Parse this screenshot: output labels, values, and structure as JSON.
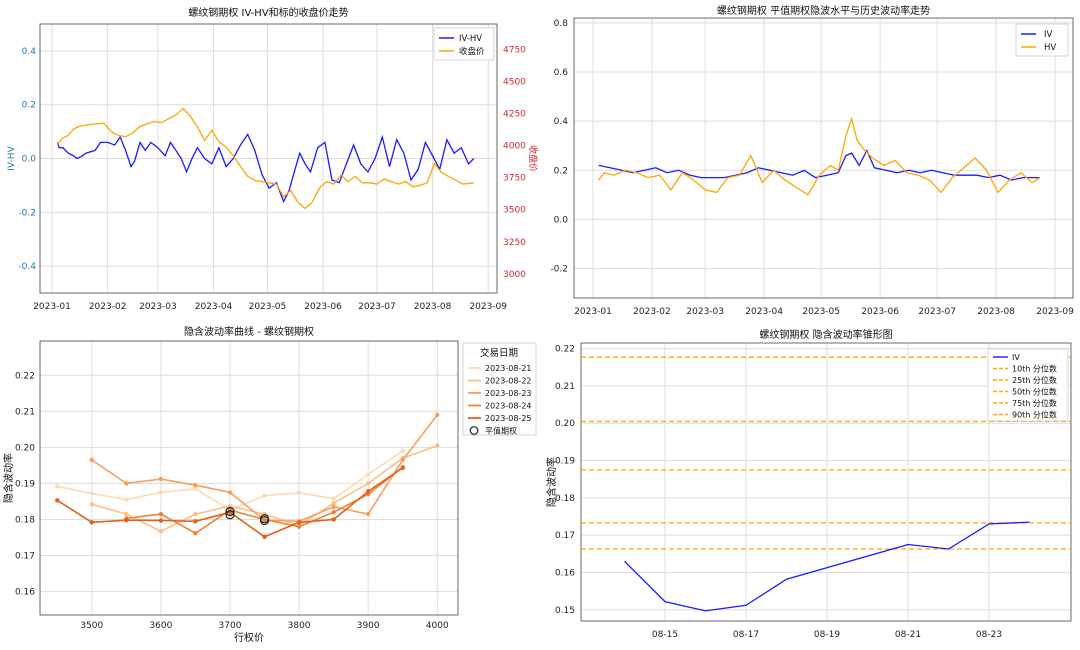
{
  "chart_data": [
    {
      "type": "line",
      "title": "螺纹钢期权 IV-HV和标的收盘价走势",
      "ylabel": "IV-HV",
      "y2label": "收盘价",
      "x_ticks": [
        "2023-01",
        "2023-02",
        "2023-03",
        "2023-04",
        "2023-05",
        "2023-06",
        "2023-07",
        "2023-08",
        "2023-09"
      ],
      "y_ticks": [
        "-0.4",
        "-0.2",
        "0.0",
        "0.2",
        "0.4"
      ],
      "y2_ticks": [
        "3000",
        "3250",
        "3500",
        "3750",
        "4000",
        "4250",
        "4500",
        "4750"
      ],
      "ylim": [
        -0.5,
        0.5
      ],
      "y2lim": [
        2850,
        4950
      ],
      "x_start": "2023-01-01",
      "x_end": "2023-09-01",
      "legend_position": "top-right",
      "grid": true,
      "colors": {
        "left_axis": "#1f77b4",
        "right_axis": "#d62728"
      },
      "series": [
        {
          "name": "IV-HV",
          "axis": "left",
          "color": "#1a1aff",
          "x": [
            "2023-01-04",
            "2023-01-05",
            "2023-01-07",
            "2023-01-10",
            "2023-01-13",
            "2023-01-15",
            "2023-01-18",
            "2023-01-20",
            "2023-01-25",
            "2023-01-28",
            "2023-02-01",
            "2023-02-05",
            "2023-02-08",
            "2023-02-11",
            "2023-02-14",
            "2023-02-16",
            "2023-02-19",
            "2023-02-22",
            "2023-02-25",
            "2023-03-01",
            "2023-03-05",
            "2023-03-08",
            "2023-03-11",
            "2023-03-14",
            "2023-03-17",
            "2023-03-20",
            "2023-03-23",
            "2023-03-27",
            "2023-03-31",
            "2023-04-04",
            "2023-04-08",
            "2023-04-12",
            "2023-04-16",
            "2023-04-20",
            "2023-04-24",
            "2023-04-28",
            "2023-05-02",
            "2023-05-06",
            "2023-05-10",
            "2023-05-13",
            "2023-05-16",
            "2023-05-19",
            "2023-05-22",
            "2023-05-25",
            "2023-05-29",
            "2023-06-02",
            "2023-06-06",
            "2023-06-10",
            "2023-06-14",
            "2023-06-18",
            "2023-06-22",
            "2023-06-26",
            "2023-06-30",
            "2023-07-04",
            "2023-07-08",
            "2023-07-12",
            "2023-07-16",
            "2023-07-20",
            "2023-07-24",
            "2023-07-28",
            "2023-08-01",
            "2023-08-05",
            "2023-08-09",
            "2023-08-13",
            "2023-08-17",
            "2023-08-21",
            "2023-08-24"
          ],
          "values": [
            0.06,
            0.04,
            0.04,
            0.02,
            0.01,
            0.0,
            0.01,
            0.02,
            0.03,
            0.06,
            0.06,
            0.05,
            0.08,
            0.03,
            -0.03,
            -0.01,
            0.06,
            0.03,
            0.06,
            0.04,
            0.01,
            0.06,
            0.03,
            0.0,
            -0.05,
            0.0,
            0.04,
            0.0,
            -0.02,
            0.04,
            -0.03,
            0.0,
            0.05,
            0.09,
            0.03,
            -0.06,
            -0.11,
            -0.09,
            -0.16,
            -0.12,
            -0.05,
            0.02,
            -0.02,
            -0.05,
            0.04,
            0.06,
            -0.08,
            -0.09,
            -0.02,
            0.05,
            -0.02,
            -0.05,
            0.0,
            0.08,
            -0.03,
            0.07,
            0.02,
            -0.08,
            -0.04,
            0.06,
            0.01,
            -0.04,
            0.07,
            0.02,
            0.04,
            -0.02,
            0.0
          ]
        },
        {
          "name": "收盘价",
          "axis": "right",
          "color": "#ffa500",
          "x": [
            "2023-01-04",
            "2023-01-07",
            "2023-01-10",
            "2023-01-13",
            "2023-01-16",
            "2023-01-20",
            "2023-01-25",
            "2023-01-30",
            "2023-02-03",
            "2023-02-07",
            "2023-02-11",
            "2023-02-15",
            "2023-02-19",
            "2023-02-23",
            "2023-02-27",
            "2023-03-03",
            "2023-03-07",
            "2023-03-11",
            "2023-03-15",
            "2023-03-19",
            "2023-03-23",
            "2023-03-27",
            "2023-03-31",
            "2023-04-04",
            "2023-04-08",
            "2023-04-12",
            "2023-04-16",
            "2023-04-20",
            "2023-04-24",
            "2023-04-28",
            "2023-05-02",
            "2023-05-06",
            "2023-05-10",
            "2023-05-14",
            "2023-05-18",
            "2023-05-22",
            "2023-05-26",
            "2023-05-30",
            "2023-06-03",
            "2023-06-07",
            "2023-06-11",
            "2023-06-15",
            "2023-06-19",
            "2023-06-23",
            "2023-06-27",
            "2023-07-01",
            "2023-07-05",
            "2023-07-09",
            "2023-07-13",
            "2023-07-17",
            "2023-07-21",
            "2023-07-25",
            "2023-07-29",
            "2023-08-02",
            "2023-08-06",
            "2023-08-10",
            "2023-08-14",
            "2023-08-18",
            "2023-08-24"
          ],
          "values": [
            4010,
            4060,
            4080,
            4130,
            4150,
            4160,
            4170,
            4175,
            4110,
            4080,
            4070,
            4100,
            4150,
            4170,
            4190,
            4180,
            4210,
            4240,
            4290,
            4230,
            4150,
            4040,
            4120,
            4030,
            3990,
            3920,
            3840,
            3760,
            3730,
            3720,
            3710,
            3700,
            3600,
            3650,
            3560,
            3510,
            3560,
            3670,
            3720,
            3700,
            3770,
            3720,
            3760,
            3710,
            3710,
            3700,
            3740,
            3720,
            3700,
            3720,
            3680,
            3690,
            3710,
            3860,
            3790,
            3760,
            3730,
            3700,
            3710
          ]
        }
      ]
    },
    {
      "type": "line",
      "title": "螺纹钢期权 平值期权隐波水平与历史波动率走势",
      "x_ticks": [
        "2023-01",
        "2023-02",
        "2023-03",
        "2023-04",
        "2023-05",
        "2023-06",
        "2023-07",
        "2023-08",
        "2023-09"
      ],
      "y_ticks": [
        "-0.2",
        "0.0",
        "0.2",
        "0.4",
        "0.6",
        "0.8"
      ],
      "ylim": [
        -0.32,
        0.82
      ],
      "x_start": "2023-01-01",
      "x_end": "2023-09-01",
      "legend_position": "top-right",
      "grid": true,
      "series": [
        {
          "name": "IV",
          "color": "#1a1aff",
          "x": [
            "2023-01-04",
            "2023-01-10",
            "2023-01-16",
            "2023-01-22",
            "2023-01-28",
            "2023-02-03",
            "2023-02-09",
            "2023-02-15",
            "2023-02-21",
            "2023-02-27",
            "2023-03-05",
            "2023-03-11",
            "2023-03-17",
            "2023-03-23",
            "2023-03-29",
            "2023-04-04",
            "2023-04-10",
            "2023-04-16",
            "2023-04-22",
            "2023-04-28",
            "2023-05-04",
            "2023-05-10",
            "2023-05-14",
            "2023-05-17",
            "2023-05-21",
            "2023-05-25",
            "2023-05-29",
            "2023-06-04",
            "2023-06-10",
            "2023-06-16",
            "2023-06-22",
            "2023-06-28",
            "2023-07-04",
            "2023-07-10",
            "2023-07-16",
            "2023-07-22",
            "2023-07-28",
            "2023-08-03",
            "2023-08-09",
            "2023-08-15",
            "2023-08-19",
            "2023-08-24"
          ],
          "values": [
            0.22,
            0.21,
            0.2,
            0.19,
            0.2,
            0.21,
            0.19,
            0.2,
            0.18,
            0.17,
            0.17,
            0.17,
            0.18,
            0.19,
            0.21,
            0.2,
            0.19,
            0.18,
            0.2,
            0.17,
            0.18,
            0.19,
            0.26,
            0.27,
            0.22,
            0.28,
            0.21,
            0.2,
            0.19,
            0.2,
            0.19,
            0.2,
            0.19,
            0.18,
            0.18,
            0.18,
            0.17,
            0.18,
            0.16,
            0.17,
            0.17,
            0.17
          ]
        },
        {
          "name": "HV",
          "color": "#ffa500",
          "x": [
            "2023-01-04",
            "2023-01-07",
            "2023-01-12",
            "2023-01-18",
            "2023-01-24",
            "2023-01-30",
            "2023-02-05",
            "2023-02-11",
            "2023-02-17",
            "2023-02-23",
            "2023-03-01",
            "2023-03-07",
            "2023-03-13",
            "2023-03-19",
            "2023-03-25",
            "2023-03-31",
            "2023-04-06",
            "2023-04-12",
            "2023-04-18",
            "2023-04-24",
            "2023-04-30",
            "2023-05-06",
            "2023-05-10",
            "2023-05-14",
            "2023-05-17",
            "2023-05-20",
            "2023-05-24",
            "2023-05-28",
            "2023-06-03",
            "2023-06-09",
            "2023-06-15",
            "2023-06-21",
            "2023-06-27",
            "2023-07-03",
            "2023-07-09",
            "2023-07-15",
            "2023-07-21",
            "2023-07-27",
            "2023-08-02",
            "2023-08-08",
            "2023-08-14",
            "2023-08-20",
            "2023-08-24"
          ],
          "values": [
            0.16,
            0.19,
            0.18,
            0.2,
            0.19,
            0.17,
            0.18,
            0.12,
            0.19,
            0.16,
            0.12,
            0.11,
            0.17,
            0.18,
            0.26,
            0.15,
            0.2,
            0.16,
            0.13,
            0.1,
            0.18,
            0.22,
            0.2,
            0.34,
            0.41,
            0.32,
            0.28,
            0.25,
            0.22,
            0.24,
            0.19,
            0.18,
            0.16,
            0.11,
            0.17,
            0.21,
            0.25,
            0.2,
            0.11,
            0.16,
            0.19,
            0.15,
            0.17
          ]
        }
      ]
    },
    {
      "type": "line",
      "title": "隐含波动率曲线 - 螺纹钢期权",
      "xlabel": "行权价",
      "ylabel": "隐含波动率",
      "x_ticks": [
        "3500",
        "3600",
        "3700",
        "3800",
        "3900",
        "4000"
      ],
      "y_ticks": [
        "0.16",
        "0.17",
        "0.18",
        "0.19",
        "0.20",
        "0.21",
        "0.22"
      ],
      "xlim": [
        3425,
        4030
      ],
      "ylim": [
        0.1535,
        0.2295
      ],
      "legend_title": "交易日期",
      "legend_position": "top-right, outside",
      "grid": true,
      "x": [
        3450,
        3500,
        3550,
        3600,
        3650,
        3700,
        3750,
        3800,
        3850,
        3900,
        3950,
        4000
      ],
      "series": [
        {
          "name": "2023-08-21",
          "color": "#fdd9b5",
          "values": [
            0.1892,
            0.1872,
            0.1855,
            0.1875,
            0.1885,
            0.1826,
            0.1866,
            0.1874,
            0.1858,
            0.1925,
            0.199,
            null
          ]
        },
        {
          "name": "2023-08-22",
          "color": "#fdbf86",
          "values": [
            null,
            0.1842,
            0.1815,
            0.1767,
            0.1815,
            0.1837,
            0.1815,
            0.1783,
            0.1845,
            0.19,
            0.197,
            0.2005
          ]
        },
        {
          "name": "2023-08-23",
          "color": "#fb9d5a",
          "values": [
            null,
            0.1965,
            0.19,
            0.1912,
            0.1895,
            0.1875,
            0.1798,
            0.1795,
            0.1835,
            0.1815,
            0.1965,
            0.209
          ]
        },
        {
          "name": "2023-08-24",
          "color": "#f08238",
          "values": [
            null,
            null,
            0.1803,
            0.1815,
            0.1762,
            0.1826,
            0.18,
            0.178,
            0.182,
            0.187,
            0.1945,
            null
          ]
        },
        {
          "name": "2023-08-25",
          "color": "#e2611a",
          "values": [
            0.1853,
            0.1792,
            0.1798,
            0.1797,
            0.1795,
            0.182,
            0.1752,
            0.1792,
            0.18,
            0.1878,
            0.1943,
            null
          ]
        }
      ],
      "atm_label": "平值期权",
      "atm_points": [
        {
          "x": 3700,
          "y": 0.1813
        },
        {
          "x": 3700,
          "y": 0.1822
        },
        {
          "x": 3750,
          "y": 0.1797
        },
        {
          "x": 3750,
          "y": 0.1802
        }
      ]
    },
    {
      "type": "line",
      "title": "螺纹钢期权 隐含波动率锥形图",
      "ylabel": "隐含波动率",
      "x_ticks": [
        "08-15",
        "08-17",
        "08-19",
        "08-21",
        "08-23"
      ],
      "y_ticks": [
        "0.15",
        "0.16",
        "0.17",
        "0.18",
        "0.19",
        "0.20",
        "0.21",
        "0.22"
      ],
      "ylim": [
        0.147,
        0.2215
      ],
      "legend_position": "top-right",
      "grid": true,
      "series": [
        {
          "name": "IV",
          "color": "#1a1aff",
          "x": [
            "08-14",
            "08-15",
            "08-16",
            "08-17",
            "08-18",
            "08-21",
            "08-22",
            "08-23",
            "08-24"
          ],
          "values": [
            0.163,
            0.1522,
            0.1497,
            0.1512,
            0.1582,
            0.1675,
            0.1663,
            0.173,
            0.1735
          ]
        }
      ],
      "quantiles": [
        {
          "name": "10th 分位数",
          "value": 0.1663
        },
        {
          "name": "25th 分位数",
          "value": 0.1733
        },
        {
          "name": "50th 分位数",
          "value": 0.1875
        },
        {
          "name": "75th 分位数",
          "value": 0.2005
        },
        {
          "name": "90th 分位数",
          "value": 0.2177
        }
      ],
      "quantile_color": "#ffa500"
    }
  ]
}
